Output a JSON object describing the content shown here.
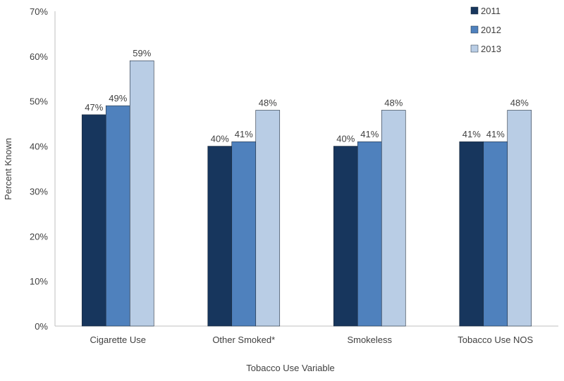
{
  "chart_data": {
    "type": "bar",
    "categories": [
      "Cigarette Use",
      "Other Smoked*",
      "Smokeless",
      "Tobacco Use NOS"
    ],
    "series": [
      {
        "name": "2011",
        "values": [
          47,
          40,
          40,
          41
        ],
        "labels": [
          "47%",
          "40%",
          "40%",
          "41%"
        ],
        "color": "#17365d"
      },
      {
        "name": "2012",
        "values": [
          49,
          41,
          41,
          41
        ],
        "labels": [
          "49%",
          "41%",
          "41%",
          "41%"
        ],
        "color": "#4f81bd"
      },
      {
        "name": "2013",
        "values": [
          59,
          48,
          48,
          48
        ],
        "labels": [
          "59%",
          "48%",
          "48%",
          "48%"
        ],
        "color": "#b9cde5"
      }
    ],
    "xlabel": "Tobacco Use Variable",
    "ylabel": "Percent Known",
    "ylim": [
      0,
      70
    ],
    "yticks": [
      "0%",
      "10%",
      "20%",
      "30%",
      "40%",
      "50%",
      "60%",
      "70%"
    ],
    "grid": false,
    "legend_position": "top-right"
  }
}
